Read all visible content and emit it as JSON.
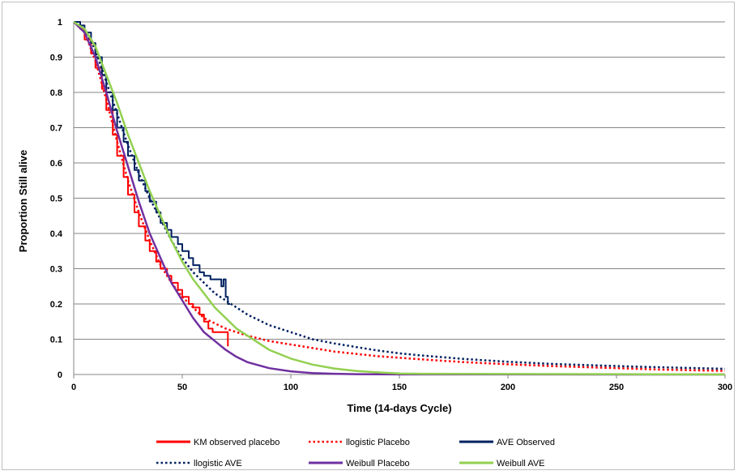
{
  "chart_data": {
    "type": "line",
    "title": "",
    "xlabel": "Time (14-days Cycle)",
    "ylabel": "Proportion Still alive",
    "xlim": [
      0,
      300
    ],
    "ylim": [
      0,
      1
    ],
    "xticks": [
      "0",
      "50",
      "100",
      "150",
      "200",
      "250",
      "300"
    ],
    "yticks": [
      "0",
      "0.1",
      "0.2",
      "0.3",
      "0.4",
      "0.5",
      "0.6",
      "0.7",
      "0.8",
      "0.9",
      "1"
    ],
    "grid": "horizontal",
    "legend_position": "bottom",
    "series": [
      {
        "name": "KM observed placebo",
        "color": "#ff0000",
        "style": "step-solid",
        "x": [
          0,
          3,
          5,
          8,
          10,
          13,
          15,
          18,
          20,
          23,
          25,
          28,
          30,
          33,
          35,
          38,
          40,
          43,
          45,
          48,
          50,
          53,
          55,
          58,
          60,
          62,
          64,
          66,
          68,
          70,
          71
        ],
        "y": [
          1.0,
          0.98,
          0.95,
          0.91,
          0.87,
          0.81,
          0.75,
          0.68,
          0.62,
          0.56,
          0.51,
          0.46,
          0.42,
          0.38,
          0.35,
          0.32,
          0.3,
          0.28,
          0.26,
          0.24,
          0.22,
          0.2,
          0.19,
          0.17,
          0.15,
          0.13,
          0.12,
          0.12,
          0.12,
          0.12,
          0.08
        ]
      },
      {
        "name": "llogistic  Placebo",
        "color": "#ff0000",
        "style": "dotted",
        "x": [
          0,
          5,
          10,
          15,
          20,
          25,
          30,
          35,
          40,
          45,
          50,
          55,
          60,
          70,
          80,
          90,
          100,
          120,
          140,
          160,
          180,
          200,
          220,
          250,
          270,
          300
        ],
        "y": [
          1.0,
          0.97,
          0.89,
          0.78,
          0.66,
          0.55,
          0.46,
          0.38,
          0.31,
          0.26,
          0.22,
          0.19,
          0.16,
          0.13,
          0.11,
          0.095,
          0.085,
          0.065,
          0.052,
          0.043,
          0.035,
          0.029,
          0.024,
          0.018,
          0.014,
          0.01
        ]
      },
      {
        "name": "AVE Observed",
        "color": "#002060",
        "style": "step-solid",
        "x": [
          0,
          3,
          5,
          8,
          10,
          13,
          15,
          18,
          20,
          23,
          25,
          28,
          30,
          33,
          35,
          38,
          40,
          43,
          45,
          48,
          50,
          53,
          55,
          58,
          60,
          63,
          66,
          68,
          69,
          70,
          71,
          72
        ],
        "y": [
          1.0,
          0.99,
          0.97,
          0.94,
          0.9,
          0.85,
          0.8,
          0.75,
          0.7,
          0.66,
          0.62,
          0.58,
          0.55,
          0.52,
          0.49,
          0.46,
          0.43,
          0.41,
          0.39,
          0.37,
          0.35,
          0.33,
          0.31,
          0.29,
          0.28,
          0.27,
          0.27,
          0.25,
          0.27,
          0.22,
          0.2,
          0.2
        ]
      },
      {
        "name": "llogistic  AVE",
        "color": "#002060",
        "style": "dotted",
        "x": [
          0,
          5,
          10,
          15,
          20,
          25,
          30,
          35,
          40,
          45,
          50,
          55,
          60,
          65,
          70,
          80,
          90,
          100,
          110,
          120,
          130,
          140,
          150,
          160,
          180,
          200,
          220,
          240,
          260,
          280,
          300
        ],
        "y": [
          1.0,
          0.98,
          0.92,
          0.83,
          0.74,
          0.65,
          0.57,
          0.5,
          0.44,
          0.38,
          0.33,
          0.29,
          0.26,
          0.23,
          0.21,
          0.17,
          0.14,
          0.12,
          0.1,
          0.088,
          0.078,
          0.068,
          0.06,
          0.054,
          0.044,
          0.036,
          0.03,
          0.026,
          0.022,
          0.019,
          0.016
        ]
      },
      {
        "name": "Weibull  Placebo",
        "color": "#7030a0",
        "style": "solid",
        "x": [
          0,
          5,
          10,
          15,
          20,
          25,
          30,
          35,
          40,
          45,
          50,
          55,
          60,
          65,
          70,
          75,
          80,
          90,
          100,
          110,
          120,
          130,
          140,
          150,
          300
        ],
        "y": [
          1.0,
          0.97,
          0.9,
          0.8,
          0.69,
          0.59,
          0.49,
          0.4,
          0.33,
          0.26,
          0.21,
          0.16,
          0.12,
          0.095,
          0.07,
          0.05,
          0.035,
          0.018,
          0.009,
          0.004,
          0.002,
          0.001,
          0.0005,
          0.0002,
          0.0
        ]
      },
      {
        "name": "Weibull AVE",
        "color": "#92d050",
        "style": "solid",
        "x": [
          0,
          5,
          10,
          15,
          20,
          25,
          30,
          35,
          40,
          45,
          50,
          55,
          60,
          65,
          70,
          75,
          80,
          90,
          100,
          110,
          120,
          130,
          140,
          150,
          160,
          300
        ],
        "y": [
          1.0,
          0.98,
          0.93,
          0.85,
          0.77,
          0.68,
          0.6,
          0.52,
          0.45,
          0.38,
          0.32,
          0.27,
          0.23,
          0.19,
          0.16,
          0.13,
          0.11,
          0.07,
          0.045,
          0.028,
          0.017,
          0.01,
          0.006,
          0.003,
          0.002,
          0.0
        ]
      }
    ]
  }
}
